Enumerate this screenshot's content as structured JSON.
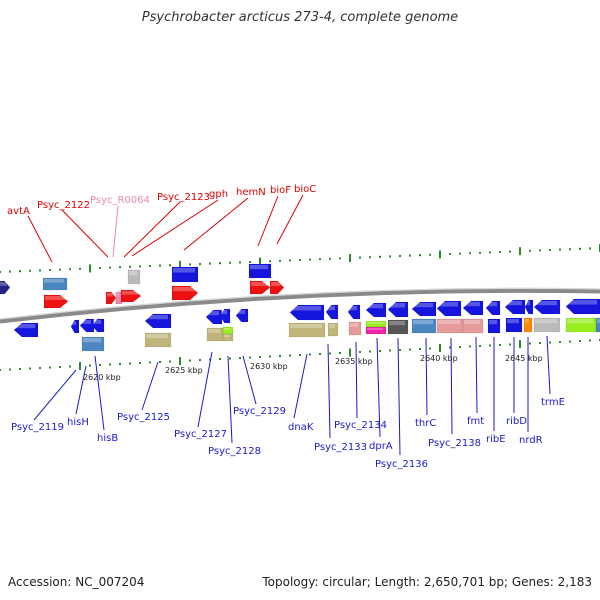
{
  "title": "Psychrobacter arcticus 273-4, complete genome",
  "accession": "Accession: NC_007204",
  "topology": "Topology: circular; Length: 2,650,701 bp; Genes: 2,183",
  "colors": {
    "red": "#ee1111",
    "blue": "#1515dd",
    "steel": "#4a86c0",
    "khaki": "#c0b47a",
    "pink": "#e79a9a",
    "gray": "#bbbbbb",
    "dark": "#555555",
    "orange": "#ff8800",
    "lime": "#99ee22",
    "magenta": "#ee22aa",
    "tick": "#2a8a2a",
    "axis": "#8a8a8a"
  },
  "scale_labels": [
    "2620 kbp",
    "2625 kbp",
    "2630 kbp",
    "2635 kbp",
    "2640 kbp",
    "2645 kbp"
  ],
  "top_labels": [
    {
      "text": "avtA"
    },
    {
      "text": "Psyc_2122"
    },
    {
      "text": "Psyc_R0064"
    },
    {
      "text": "Psyc_2123"
    },
    {
      "text": "gph"
    },
    {
      "text": "hemN"
    },
    {
      "text": "bioF"
    },
    {
      "text": "bioC"
    }
  ],
  "bottom_labels": [
    {
      "text": "Psyc_2119"
    },
    {
      "text": "hisH"
    },
    {
      "text": "hisB"
    },
    {
      "text": "Psyc_2125"
    },
    {
      "text": "Psyc_2127"
    },
    {
      "text": "Psyc_2128"
    },
    {
      "text": "Psyc_2129"
    },
    {
      "text": "dnaK"
    },
    {
      "text": "Psyc_2133"
    },
    {
      "text": "Psyc_2134"
    },
    {
      "text": "dprA"
    },
    {
      "text": "Psyc_2136"
    },
    {
      "text": "thrC"
    },
    {
      "text": "Psyc_2138"
    },
    {
      "text": "fmt"
    },
    {
      "text": "ribE"
    },
    {
      "text": "ribD"
    },
    {
      "text": "nrdR"
    },
    {
      "text": "trmE"
    }
  ]
}
